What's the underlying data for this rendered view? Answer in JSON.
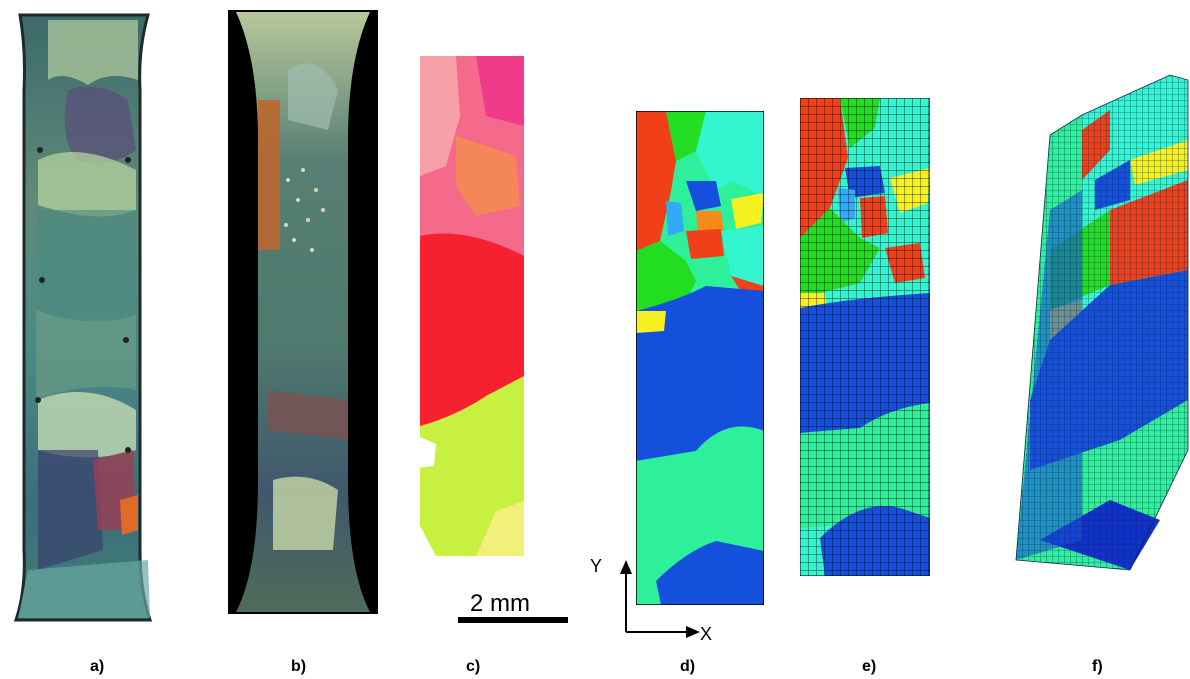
{
  "panels": [
    {
      "id": "a",
      "label": "a)"
    },
    {
      "id": "b",
      "label": "b)"
    },
    {
      "id": "c",
      "label": "c)"
    },
    {
      "id": "d",
      "label": "d)"
    },
    {
      "id": "e",
      "label": "e)"
    },
    {
      "id": "f",
      "label": "f)"
    }
  ],
  "scale_bar": {
    "text": "2 mm"
  },
  "axes": {
    "y_label": "Y",
    "x_label": "X"
  },
  "colors": {
    "grain_red": "#f0401a",
    "grain_green": "#22dd22",
    "grain_cyan": "#33f5d0",
    "grain_blue": "#1550dd",
    "grain_mint": "#2ef09a",
    "grain_yellow": "#f5f020",
    "grain_orange": "#f58a1a",
    "grain_darkblue": "#1030d0",
    "ebsd_red": "#f52030",
    "ebsd_lime": "#c8f040",
    "ebsd_pink": "#f06a8a"
  }
}
